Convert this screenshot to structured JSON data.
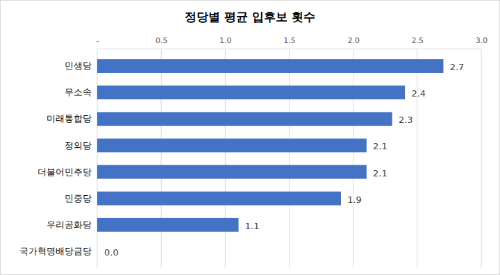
{
  "chart_data": {
    "type": "bar",
    "orientation": "horizontal",
    "title": "정당별 평균 입후보 횟수",
    "categories": [
      "민생당",
      "무소속",
      "미래통합당",
      "정의당",
      "더불어민주당",
      "민중당",
      "우리공화당",
      "국가혁명배당금당"
    ],
    "values": [
      2.7,
      2.4,
      2.3,
      2.1,
      2.1,
      1.9,
      1.1,
      0
    ],
    "value_labels": [
      "2.7",
      "2.4",
      "2.3",
      "2.1",
      "2.1",
      "1.9",
      "1.1",
      "0.0"
    ],
    "color": "#4472c4",
    "xlim": [
      0,
      3
    ],
    "xticks": [
      {
        "value": 0,
        "label": "-"
      },
      0.5,
      {
        "value": 1,
        "label": "1.0"
      },
      1.5,
      {
        "value": 2,
        "label": "2.0"
      },
      2.5,
      {
        "value": 3,
        "label": "3.0"
      }
    ],
    "grid": true,
    "data_labels": true
  }
}
